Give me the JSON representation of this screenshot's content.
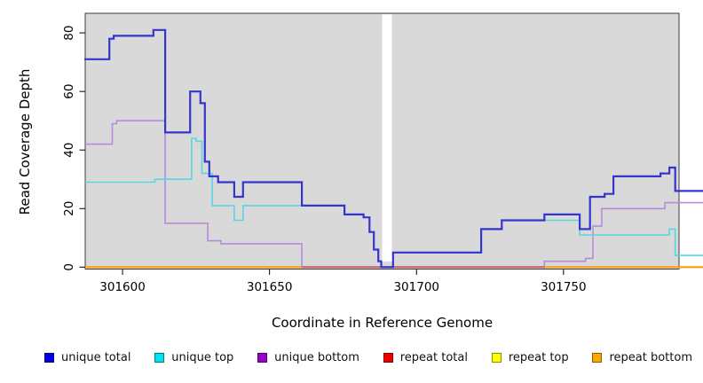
{
  "chart_data": {
    "type": "line",
    "subtype": "step",
    "title": "",
    "xlabel": "Coordinate in Reference Genome",
    "ylabel": "Read Coverage Depth",
    "x_ticks": [
      301600,
      301650,
      301700,
      301750
    ],
    "y_ticks": [
      0,
      20,
      40,
      60,
      80
    ],
    "xlim": [
      301587.3,
      301789.3
    ],
    "ylim": [
      0,
      86
    ],
    "plot_background": "#d9d9d9",
    "page_background": "#ffffff",
    "gap_region": {
      "x_start": 301688,
      "x_end": 301692
    },
    "overlap_tint_color": "#c4607e",
    "legend_position": "bottom",
    "series": [
      {
        "name": "unique total",
        "legend_color": "#0000e0",
        "line_color": "#3434d0",
        "line_width": 2.2,
        "points": [
          [
            301587,
            71
          ],
          [
            301595.5,
            78
          ],
          [
            301597,
            79
          ],
          [
            301610.5,
            81
          ],
          [
            301614.5,
            46
          ],
          [
            301623,
            60
          ],
          [
            301626.5,
            56
          ],
          [
            301628,
            36
          ],
          [
            301629.5,
            31
          ],
          [
            301632.5,
            29
          ],
          [
            301638,
            24
          ],
          [
            301641,
            29
          ],
          [
            301661,
            21
          ],
          [
            301675.5,
            18
          ],
          [
            301682,
            17
          ],
          [
            301684,
            12
          ],
          [
            301685.5,
            6
          ],
          [
            301687,
            2
          ],
          [
            301688,
            0
          ],
          [
            301692,
            5
          ],
          [
            301722,
            13
          ],
          [
            301729,
            16
          ],
          [
            301743.5,
            18
          ],
          [
            301755.5,
            13
          ],
          [
            301759,
            24
          ],
          [
            301764,
            25
          ],
          [
            301767,
            31
          ],
          [
            301783,
            32
          ],
          [
            301786,
            34
          ],
          [
            301788,
            26
          ]
        ]
      },
      {
        "name": "unique top",
        "legend_color": "#00e0ee",
        "line_color": "#5ad6e0",
        "line_width": 1.6,
        "points": [
          [
            301587,
            29
          ],
          [
            301611,
            30
          ],
          [
            301623.5,
            44
          ],
          [
            301625,
            43
          ],
          [
            301627,
            32
          ],
          [
            301630.5,
            21
          ],
          [
            301638,
            16
          ],
          [
            301641,
            21
          ],
          [
            301675.5,
            18
          ],
          [
            301682,
            17
          ],
          [
            301684,
            12
          ],
          [
            301685.5,
            6
          ],
          [
            301687,
            2
          ],
          [
            301688,
            0
          ],
          [
            301692,
            5
          ],
          [
            301722,
            13
          ],
          [
            301729,
            16
          ],
          [
            301755.5,
            11
          ],
          [
            301786,
            13
          ],
          [
            301788,
            4
          ]
        ]
      },
      {
        "name": "unique bottom",
        "legend_color": "#9a00cc",
        "line_color": "#b48cdb",
        "line_width": 1.6,
        "points": [
          [
            301587,
            42
          ],
          [
            301596.5,
            49
          ],
          [
            301598,
            50
          ],
          [
            301614.5,
            15
          ],
          [
            301629,
            9
          ],
          [
            301633.5,
            8
          ],
          [
            301661,
            0
          ],
          [
            301743.5,
            2
          ],
          [
            301757.5,
            3
          ],
          [
            301760,
            14
          ],
          [
            301763,
            20
          ],
          [
            301784.5,
            22
          ]
        ]
      },
      {
        "name": "repeat total",
        "legend_color": "#ee0000",
        "line_color": "#dd2222",
        "line_width": 1.8,
        "points": [
          [
            301587,
            0
          ]
        ]
      },
      {
        "name": "repeat top",
        "legend_color": "#ffff00",
        "line_color": "#ffee00",
        "line_width": 1.8,
        "points": [
          [
            301587,
            0
          ]
        ]
      },
      {
        "name": "repeat bottom",
        "legend_color": "#ffa500",
        "line_color": "#ff9f1a",
        "line_width": 1.8,
        "points": [
          [
            301587,
            0
          ]
        ]
      }
    ]
  }
}
